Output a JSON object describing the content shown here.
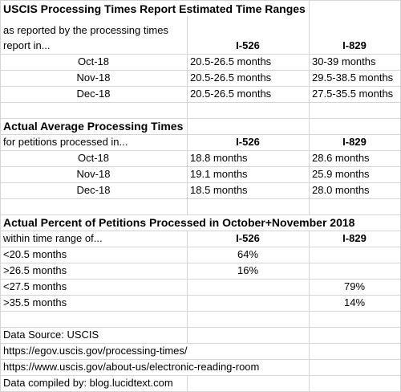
{
  "section1": {
    "title": "USCIS Processing Times Report Estimated Time Ranges",
    "label_line1": "as reported by the processing times",
    "label_line2": "report in...",
    "col_a": "I-526",
    "col_b": "I-829",
    "rows": [
      {
        "month": "Oct-18",
        "a": "20.5-26.5 months",
        "b": "30-39 months"
      },
      {
        "month": "Nov-18",
        "a": "20.5-26.5 months",
        "b": "29.5-38.5 months"
      },
      {
        "month": "Dec-18",
        "a": "20.5-26.5 months",
        "b": "27.5-35.5 months"
      }
    ]
  },
  "section2": {
    "title": "Actual Average Processing Times",
    "label": "for petitions processed in...",
    "col_a": "I-526",
    "col_b": "I-829",
    "rows": [
      {
        "month": "Oct-18",
        "a": "18.8 months",
        "b": "28.6 months"
      },
      {
        "month": "Nov-18",
        "a": "19.1 months",
        "b": "25.9 months"
      },
      {
        "month": "Dec-18",
        "a": "18.5 months",
        "b": "28.0 months"
      }
    ]
  },
  "section3": {
    "title": "Actual Percent of Petitions Processed in October+November 2018",
    "label": "within time range of...",
    "col_a": "I-526",
    "col_b": "I-829",
    "rows": [
      {
        "range": "<20.5 months",
        "a": "64%",
        "b": ""
      },
      {
        "range": ">26.5 months",
        "a": "16%",
        "b": ""
      },
      {
        "range": "<27.5 months",
        "a": "",
        "b": "79%"
      },
      {
        "range": ">35.5 months",
        "a": "",
        "b": "14%"
      }
    ]
  },
  "footer": {
    "source": "Data Source: USCIS",
    "url1": "https://egov.uscis.gov/processing-times/",
    "url2": "https://www.uscis.gov/about-us/electronic-reading-room",
    "compiled": "Data compiled by: blog.lucidtext.com"
  }
}
